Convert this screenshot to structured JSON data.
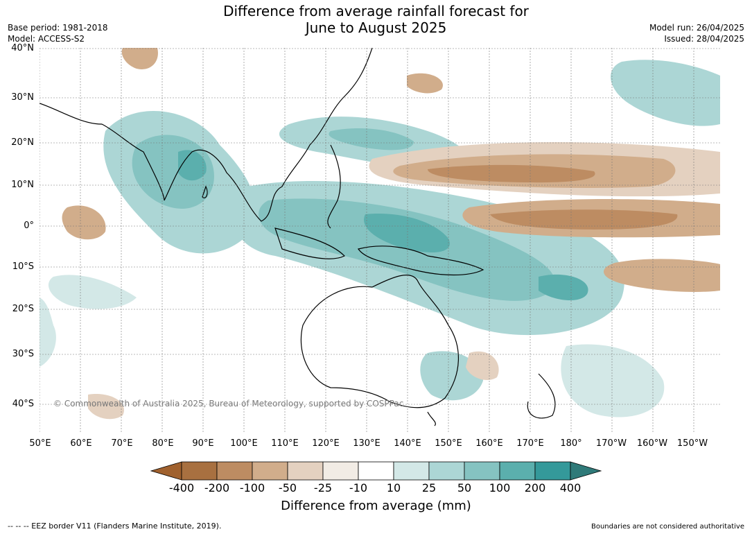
{
  "title_line1": "Difference from average rainfall forecast for",
  "title_line2": "June to August 2025",
  "base_period": "Base period: 1981-2018",
  "model": "Model: ACCESS-S2",
  "model_run": "Model run: 26/04/2025",
  "issued": "Issued: 28/04/2025",
  "map": {
    "lat_labels": [
      "40°N",
      "30°N",
      "20°N",
      "10°N",
      "0°",
      "10°S",
      "20°S",
      "30°S",
      "40°S"
    ],
    "lon_labels": [
      "50°E",
      "60°E",
      "70°E",
      "80°E",
      "90°E",
      "100°E",
      "110°E",
      "120°E",
      "130°E",
      "140°E",
      "150°E",
      "160°E",
      "170°E",
      "180°",
      "170°W",
      "160°W",
      "150°W"
    ],
    "copyright": "© Commonwealth of Australia 2025, Bureau of Meteorology, supported by COSPPac"
  },
  "colorbar": {
    "ticks": [
      "-400",
      "-200",
      "-100",
      "-50",
      "-25",
      "-10",
      "10",
      "25",
      "50",
      "100",
      "200",
      "400"
    ],
    "colors": [
      "#a0612e",
      "#a87040",
      "#bd8c62",
      "#d1ad8b",
      "#e4d1c0",
      "#f2ece5",
      "#ffffff",
      "#d3e8e7",
      "#acd6d5",
      "#85c3c1",
      "#5bafad",
      "#34999a",
      "#2f7a79"
    ],
    "label": "Difference from average (mm)"
  },
  "footer": {
    "eez": "--  --  -- EEZ border V11 (Flanders Marine Institute, 2019).",
    "disclaimer": "Boundaries are not considered authoritative"
  }
}
